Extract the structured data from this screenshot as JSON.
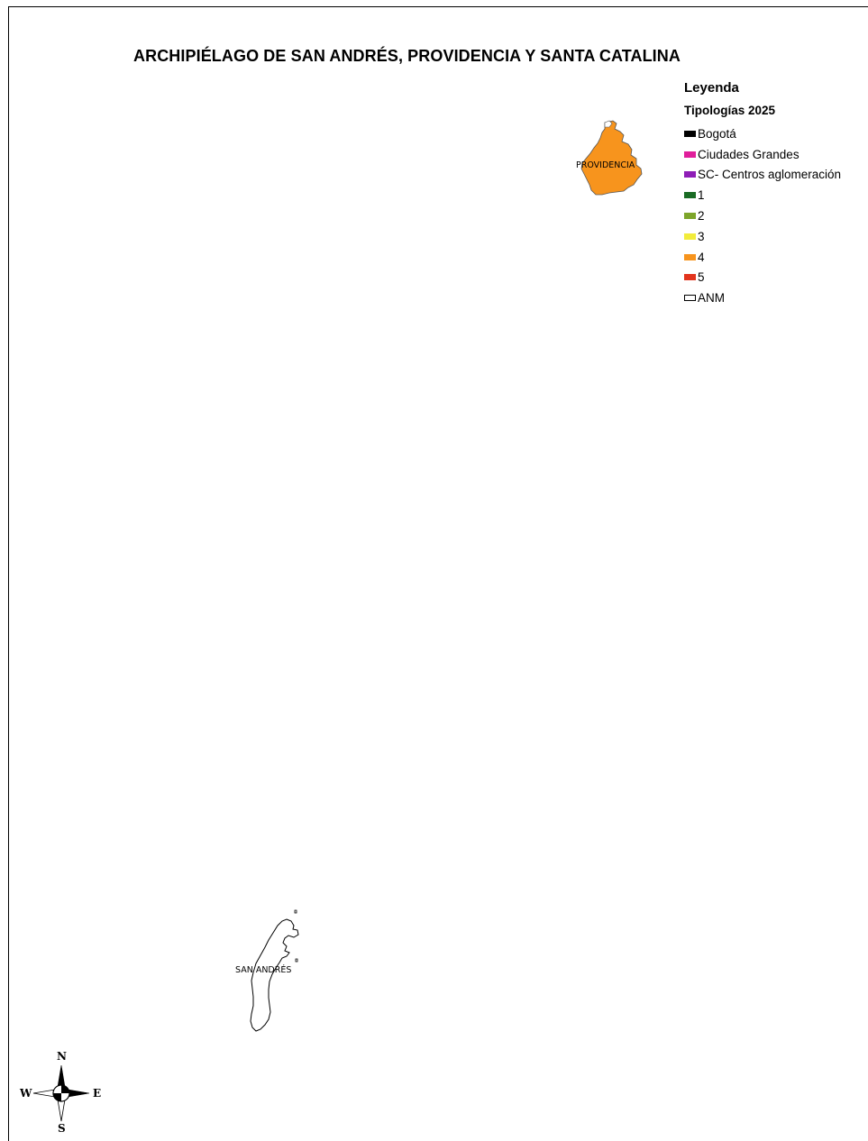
{
  "map": {
    "title": "ARCHIPIÉLAGO DE SAN ANDRÉS, PROVIDENCIA Y SANTA CATALINA",
    "islands": {
      "providencia": {
        "label": "PROVIDENCIA",
        "category": "4",
        "fill": "#F7941D"
      },
      "san_andres": {
        "label": "SAN ANDRÉS",
        "category": "ANM",
        "fill": "#FFFFFF"
      }
    }
  },
  "legend": {
    "title": "Leyenda",
    "subtitle": "Tipologías 2025",
    "items": [
      {
        "label": "Bogotá",
        "color": "#000000"
      },
      {
        "label": "Ciudades Grandes",
        "color": "#E01E9B"
      },
      {
        "label": "SC- Centros aglomeración",
        "color": "#8E1DB6"
      },
      {
        "label": "1",
        "color": "#1A6B24"
      },
      {
        "label": "2",
        "color": "#7DA52A"
      },
      {
        "label": "3",
        "color": "#F2EC3B"
      },
      {
        "label": "4",
        "color": "#F7941D"
      },
      {
        "label": "5",
        "color": "#E2341D"
      },
      {
        "label": "ANM",
        "color": "#FFFFFF",
        "outline": true
      }
    ]
  },
  "compass": {
    "north": "N",
    "south": "S",
    "east": "E",
    "west": "W"
  }
}
